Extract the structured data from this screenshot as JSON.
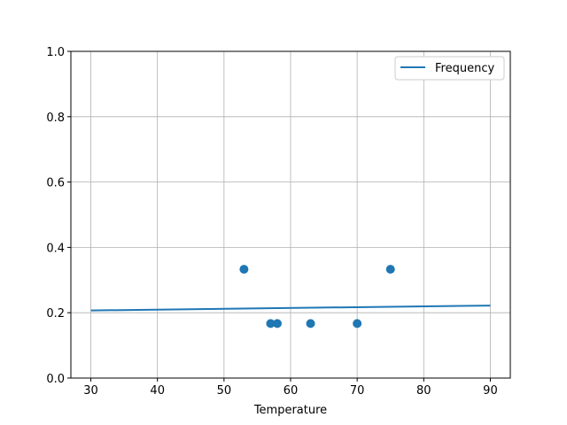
{
  "chart_data": {
    "type": "scatter",
    "title": "",
    "xlabel": "Temperature",
    "ylabel": "",
    "xlim": [
      27,
      93
    ],
    "ylim": [
      0,
      1
    ],
    "xticks": [
      30,
      40,
      50,
      60,
      70,
      80,
      90
    ],
    "yticks": [
      "0.0",
      "0.2",
      "0.4",
      "0.6",
      "0.8",
      "1.0"
    ],
    "grid": true,
    "legend_position": "top-right",
    "color": "#1f77b4",
    "scatter": {
      "x": [
        53,
        57,
        58,
        63,
        70,
        75
      ],
      "y": [
        0.333,
        0.167,
        0.167,
        0.167,
        0.167,
        0.333
      ]
    },
    "line": {
      "name": "Frequency",
      "x": [
        30,
        90
      ],
      "y": [
        0.207,
        0.222
      ]
    }
  }
}
